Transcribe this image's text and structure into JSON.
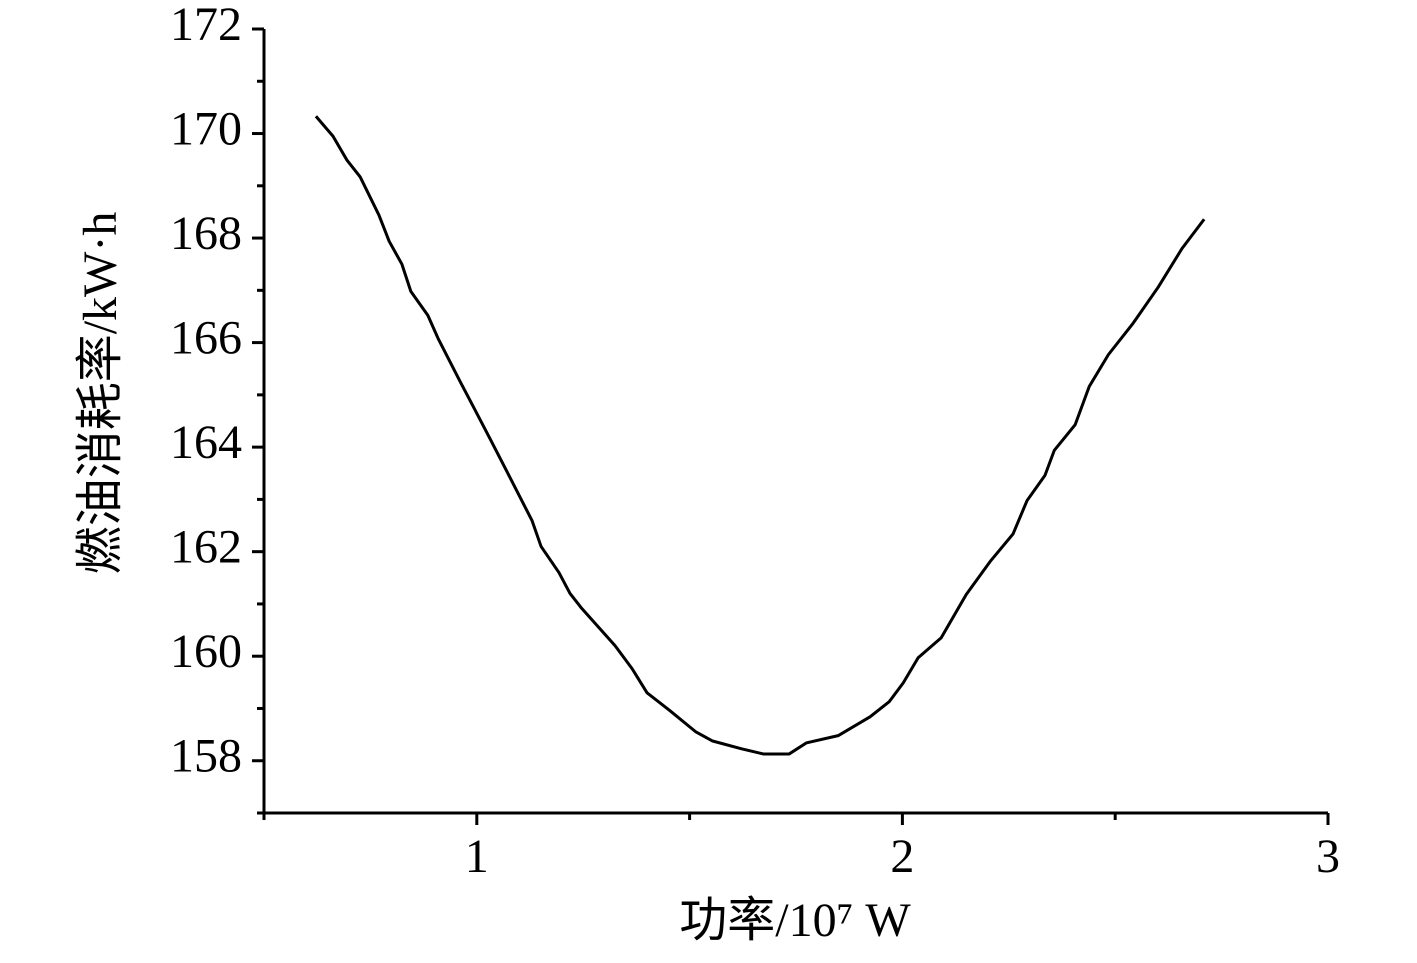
{
  "chart_data": {
    "type": "line",
    "xlabel": "功率/10⁷ W",
    "ylabel": "燃油消耗率/kW·h",
    "xlim": [
      0.5,
      3
    ],
    "xticks": [
      1,
      2,
      3
    ],
    "xminorticks": [
      0.5,
      1.5,
      2.5
    ],
    "ylim": [
      157,
      172
    ],
    "yticks": [
      158,
      160,
      162,
      164,
      166,
      168,
      170,
      172
    ],
    "yminorticks": [
      157,
      159,
      161,
      163,
      165,
      167,
      169,
      171
    ],
    "grid": false,
    "series": [
      {
        "color": "#000000",
        "x": [
          0.622,
          0.662,
          0.695,
          0.726,
          0.77,
          0.794,
          0.824,
          0.845,
          0.885,
          0.909,
          0.963,
          0.994,
          1.033,
          1.083,
          1.13,
          1.151,
          1.193,
          1.219,
          1.245,
          1.325,
          1.365,
          1.4,
          1.452,
          1.515,
          1.553,
          1.621,
          1.673,
          1.734,
          1.774,
          1.849,
          1.924,
          1.969,
          2.002,
          2.037,
          2.091,
          2.15,
          2.206,
          2.26,
          2.293,
          2.335,
          2.357,
          2.406,
          2.439,
          2.484,
          2.542,
          2.601,
          2.657,
          2.709
        ],
        "values": [
          170.33,
          169.95,
          169.49,
          169.17,
          168.44,
          167.94,
          167.5,
          166.98,
          166.52,
          166.08,
          165.22,
          164.74,
          164.13,
          163.34,
          162.59,
          162.1,
          161.6,
          161.2,
          160.93,
          160.2,
          159.76,
          159.3,
          158.97,
          158.55,
          158.38,
          158.23,
          158.13,
          158.13,
          158.34,
          158.48,
          158.84,
          159.13,
          159.49,
          159.97,
          160.35,
          161.18,
          161.81,
          162.34,
          162.98,
          163.46,
          163.94,
          164.43,
          165.16,
          165.77,
          166.37,
          167.06,
          167.8,
          168.36
        ]
      }
    ]
  }
}
